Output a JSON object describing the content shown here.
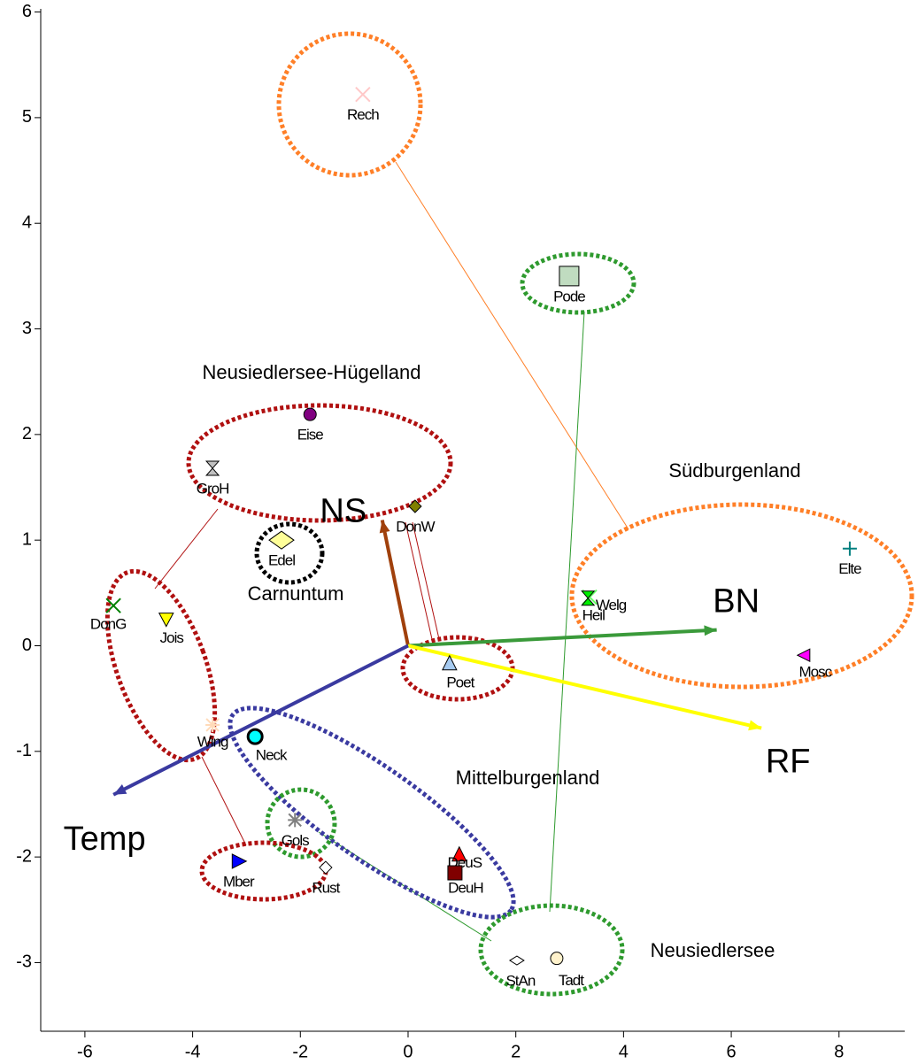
{
  "chart_data": {
    "type": "biplot",
    "xlim": [
      -6.82,
      9.22
    ],
    "ylim": [
      -3.65,
      6.03
    ],
    "xticks": [
      -6,
      -4,
      -2,
      0,
      2,
      4,
      6,
      8
    ],
    "yticks": [
      -3,
      -2,
      -1,
      0,
      1,
      2,
      3,
      4,
      5,
      6
    ],
    "points": [
      {
        "name": "Rech",
        "x": -0.84,
        "y": 5.22,
        "marker": "x",
        "color": "#ffc8c8"
      },
      {
        "name": "Pode",
        "x": 2.99,
        "y": 3.5,
        "marker": "square",
        "color": "#c0dcc0"
      },
      {
        "name": "Eise",
        "x": -1.82,
        "y": 2.19,
        "marker": "circle",
        "color": "#800080"
      },
      {
        "name": "GroH",
        "x": -3.63,
        "y": 1.68,
        "marker": "hourglass",
        "color": "#c0c0c0"
      },
      {
        "name": "DonW",
        "x": 0.13,
        "y": 1.32,
        "marker": "diamond",
        "color": "#808000"
      },
      {
        "name": "Edel",
        "x": -2.35,
        "y": 1.0,
        "marker": "bigdiamond",
        "color": "#ffff99"
      },
      {
        "name": "DonG",
        "x": -5.47,
        "y": 0.38,
        "marker": "x",
        "color": "#008000"
      },
      {
        "name": "Jois",
        "x": -4.49,
        "y": 0.25,
        "marker": "tridown",
        "color": "#ffff00"
      },
      {
        "name": "Welg",
        "x": 3.37,
        "y": 0.46,
        "marker": "x",
        "color": "#66ff66"
      },
      {
        "name": "Heil",
        "x": 3.34,
        "y": 0.45,
        "marker": "hourglass",
        "color": "#00ee00"
      },
      {
        "name": "Elte",
        "x": 8.2,
        "y": 0.92,
        "marker": "plus",
        "color": "#008080"
      },
      {
        "name": "Mosc",
        "x": 7.36,
        "y": -0.09,
        "marker": "trileft",
        "color": "#ff00ff"
      },
      {
        "name": "Poet",
        "x": 0.77,
        "y": -0.17,
        "marker": "triup",
        "color": "#a6caf0"
      },
      {
        "name": "Wing",
        "x": -3.63,
        "y": -0.75,
        "marker": "asterisk",
        "color": "#ffdab9"
      },
      {
        "name": "Neck",
        "x": -2.84,
        "y": -0.86,
        "marker": "target",
        "color": "#00ffff"
      },
      {
        "name": "Gols",
        "x": -2.1,
        "y": -1.65,
        "marker": "asterisk",
        "color": "#808080"
      },
      {
        "name": "Mber",
        "x": -3.15,
        "y": -2.04,
        "marker": "triright",
        "color": "#0000ff"
      },
      {
        "name": "Rust",
        "x": -1.53,
        "y": -2.1,
        "marker": "diamond",
        "color": "#ffffff"
      },
      {
        "name": "DeuS",
        "x": 0.95,
        "y": -1.98,
        "marker": "triup",
        "color": "#ff0000"
      },
      {
        "name": "DeuH",
        "x": 0.87,
        "y": -2.15,
        "marker": "square",
        "color": "#800000"
      },
      {
        "name": "StAn",
        "x": 2.02,
        "y": -2.98,
        "marker": "smalldiamond",
        "color": "#ffffff"
      },
      {
        "name": "Tadt",
        "x": 2.76,
        "y": -2.96,
        "marker": "circle",
        "color": "#fff2cc"
      }
    ],
    "vectors": [
      {
        "name": "NS",
        "x": -0.48,
        "y": 1.19,
        "color": "#a0400c"
      },
      {
        "name": "BN",
        "x": 5.73,
        "y": 0.15,
        "color": "#3a9a3a"
      },
      {
        "name": "RF",
        "x": 6.56,
        "y": -0.78,
        "color": "#ffff00"
      },
      {
        "name": "Temp",
        "x": -5.47,
        "y": -1.41,
        "color": "#3a3aa0"
      }
    ],
    "groups": [
      "Neusiedlersee-Hügelland",
      "Südburgenland",
      "Carnuntum",
      "Mittelburgenland",
      "Neusiedlersee"
    ]
  }
}
